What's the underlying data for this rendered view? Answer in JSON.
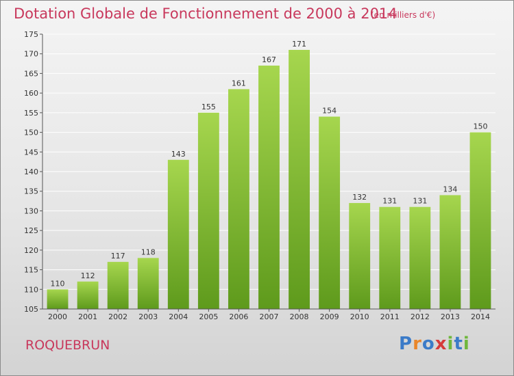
{
  "header": {
    "title": "Dotation Globale de Fonctionnement de 2000 à 2014",
    "subtitle": "(en milliers d'€)"
  },
  "footer": {
    "commune": "ROQUEBRUN",
    "brand_parts": [
      "P",
      "r",
      "o",
      "x",
      "i",
      "t",
      "i"
    ]
  },
  "chart_data": {
    "type": "bar",
    "title": "Dotation Globale de Fonctionnement de 2000 à 2014",
    "subtitle": "(en milliers d'€)",
    "xlabel": "",
    "ylabel": "",
    "categories": [
      "2000",
      "2001",
      "2002",
      "2003",
      "2004",
      "2005",
      "2006",
      "2007",
      "2008",
      "2009",
      "2010",
      "2011",
      "2012",
      "2013",
      "2014"
    ],
    "values": [
      110,
      112,
      117,
      118,
      143,
      155,
      161,
      167,
      171,
      154,
      132,
      131,
      131,
      134,
      150
    ],
    "ylim": [
      105,
      175
    ],
    "yticks": [
      105,
      110,
      115,
      120,
      125,
      130,
      135,
      140,
      145,
      150,
      155,
      160,
      165,
      170,
      175
    ],
    "grid": true,
    "data_labels": true,
    "bar_color": "#8cc43c",
    "bar_color_light": "#a6d64e",
    "bar_color_dark": "#5e9a1c",
    "grid_color": "#ffffff"
  }
}
